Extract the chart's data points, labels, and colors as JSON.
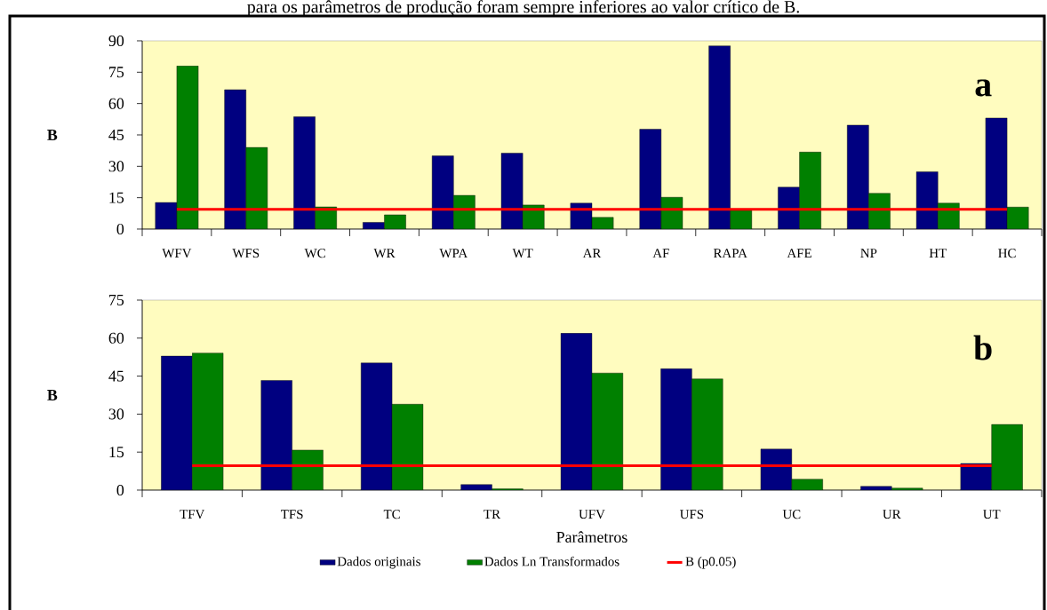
{
  "chart_data": [
    {
      "type": "bar",
      "title": "para os parâmetros de produção foram sempre inferiores ao valor crítico de B.",
      "ylabel": "B",
      "annotations": [
        "a"
      ],
      "categories": [
        "WFV",
        "WFS",
        "WC",
        "WR",
        "WPA",
        "WT",
        "AR",
        "AF",
        "RAPA",
        "AFE",
        "NP",
        "HT",
        "HC"
      ],
      "series": [
        {
          "color": "#000080",
          "values": [
            12.7,
            66.6,
            53.7,
            3.2,
            35,
            36.3,
            12.4,
            47.7,
            87.6,
            20,
            49.7,
            27.4,
            53.1
          ]
        },
        {
          "color": "#008000",
          "values": [
            78,
            39,
            10.6,
            6.8,
            16.1,
            11.5,
            5.6,
            15.2,
            9,
            36.8,
            17.1,
            12.4,
            10.5
          ]
        },
        {
          "type": "line",
          "color": "#ff0000",
          "values": [
            9.4,
            9.4,
            9.4,
            9.4,
            9.4,
            9.4,
            9.4,
            9.4,
            9.4,
            9.4,
            9.4,
            9.4,
            9.4
          ]
        }
      ],
      "ylim": [
        0,
        90
      ],
      "yticks": [
        0,
        15,
        30,
        45,
        60,
        75,
        90
      ],
      "grid": false
    },
    {
      "type": "bar",
      "ylabel": "B",
      "xlabel": "Parâmetros",
      "annotations": [
        "b"
      ],
      "categories": [
        "TFV",
        "TFS",
        "TC",
        "TR",
        "UFV",
        "UFS",
        "UC",
        "UR",
        "UT"
      ],
      "series": [
        {
          "name": "Dados originais",
          "color": "#000080",
          "values": [
            52.9,
            43.3,
            50.2,
            2.2,
            61.9,
            47.9,
            16.2,
            1.5,
            10.5
          ]
        },
        {
          "name": "Dados Ln Transformados",
          "color": "#008000",
          "values": [
            54.1,
            15.8,
            33.9,
            0.5,
            46.2,
            43.9,
            4.3,
            0.8,
            25.9
          ]
        },
        {
          "name": "B (p0.05)",
          "type": "line",
          "color": "#ff0000",
          "values": [
            9.6,
            9.6,
            9.6,
            9.6,
            9.6,
            9.6,
            9.6,
            9.6,
            9.6
          ]
        }
      ],
      "ylim": [
        0,
        75
      ],
      "yticks": [
        0,
        15,
        30,
        45,
        60,
        75
      ],
      "grid": false,
      "legend": "bottom"
    }
  ]
}
